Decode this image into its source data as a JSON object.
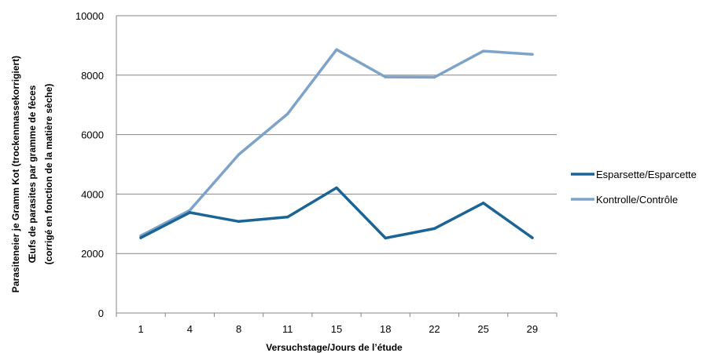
{
  "chart_data": {
    "type": "line",
    "categories": [
      "1",
      "4",
      "8",
      "11",
      "15",
      "18",
      "22",
      "25",
      "29"
    ],
    "series": [
      {
        "name": "Esparsette/Esparcette",
        "color": "#1a6496",
        "values": [
          2530,
          3380,
          3080,
          3230,
          4210,
          2520,
          2840,
          3700,
          2530
        ]
      },
      {
        "name": "Kontrolle/Contrôle",
        "color": "#7ea3c9",
        "values": [
          2600,
          3450,
          5330,
          6700,
          8860,
          7940,
          7930,
          8810,
          8700
        ]
      }
    ],
    "ylim": [
      0,
      10000
    ],
    "yticks": [
      "0",
      "2000",
      "4000",
      "6000",
      "8000",
      "10000"
    ],
    "xlabel": "Versuchstage/Jours de l’étude",
    "ylabel_lines": [
      "Parasiteneier je Gramm Kot (trockenmassekorrigiert)",
      "Œufs de parasites par gramme de fèces",
      "(corrigé en fonction de la matière sèche)"
    ],
    "grid": true,
    "legend_position": "right"
  }
}
